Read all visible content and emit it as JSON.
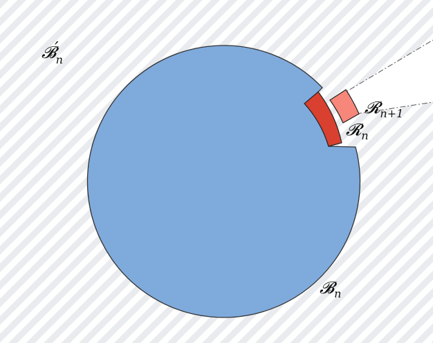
{
  "colors": {
    "background": "#ffffff",
    "hatch_stripe": "#e9ebee",
    "disk_fill": "#7faadc",
    "outline": "#333333",
    "region_n_fill": "#d94030",
    "region_n1_fill": "#f7877a",
    "dashdot_line": "#555555"
  },
  "labels": {
    "outer_region": {
      "main": "𝓑",
      "prime": "′",
      "sub": "n"
    },
    "disk": {
      "main": "𝓑",
      "sub": "n"
    },
    "region_n": {
      "main": "𝓡",
      "sub": "n"
    },
    "region_n1": {
      "main": "𝓡",
      "sub": "n+1"
    }
  }
}
